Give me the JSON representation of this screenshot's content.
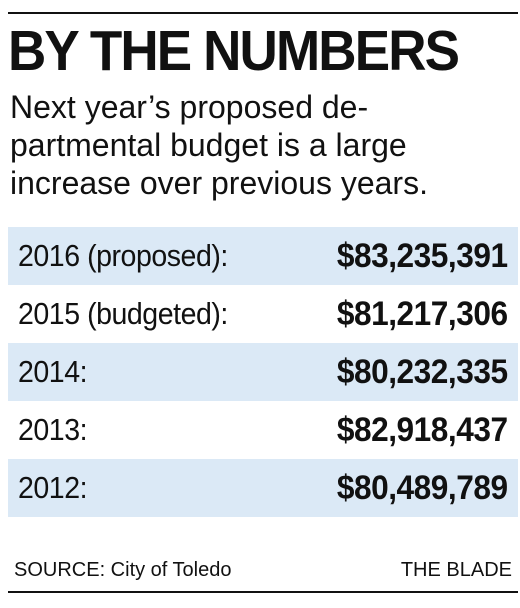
{
  "headline": "BY THE NUMBERS",
  "subtitle": "Next year’s proposed de-\npartmental budget is a large\nincrease over previous years.",
  "rows": [
    {
      "label": "2016 (proposed):",
      "value": "$83,235,391"
    },
    {
      "label": "2015 (budgeted):",
      "value": "$81,217,306"
    },
    {
      "label": "2014:",
      "value": "$80,232,335"
    },
    {
      "label": "2013:",
      "value": "$82,918,437"
    },
    {
      "label": "2012:",
      "value": "$80,489,789"
    }
  ],
  "footer": {
    "source": "SOURCE: City of Toledo",
    "credit": "THE BLADE"
  },
  "colors": {
    "row_shade": "#dbe9f6",
    "text": "#111111"
  }
}
